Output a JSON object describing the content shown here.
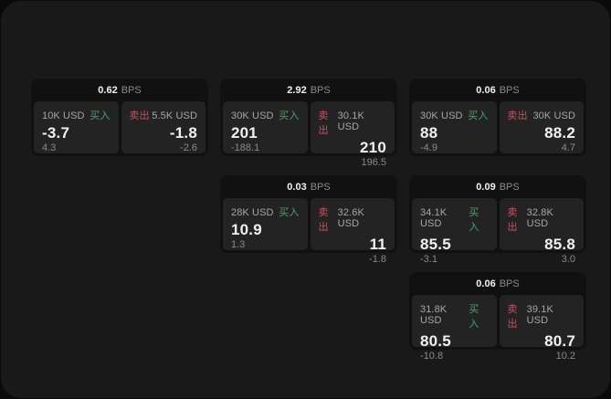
{
  "theme": {
    "page_bg": "#0a0a0a",
    "panel_bg": "#191919",
    "card_bg": "#111111",
    "cell_bg": "#232323",
    "text_primary": "#f1f1f1",
    "text_secondary": "#a6a6a6",
    "text_dim": "#8a8a8a",
    "buy_green": "#3fa968",
    "sell_red": "#c94f5e"
  },
  "labels": {
    "buy": "买入",
    "sell": "卖出",
    "bps_unit": "BPS"
  },
  "cards": [
    {
      "bps": "0.62",
      "buy": {
        "notional": "10K USD",
        "price": "-3.7",
        "delta": "4.3"
      },
      "sell": {
        "notional": "5.5K USD",
        "price": "-1.8",
        "delta": "-2.6"
      }
    },
    {
      "bps": "2.92",
      "buy": {
        "notional": "30K USD",
        "price": "201",
        "delta": "-188.1"
      },
      "sell": {
        "notional": "30.1K USD",
        "price": "210",
        "delta": "196.5"
      }
    },
    {
      "bps": "0.06",
      "buy": {
        "notional": "30K USD",
        "price": "88",
        "delta": "-4.9"
      },
      "sell": {
        "notional": "30K USD",
        "price": "88.2",
        "delta": "4.7"
      }
    },
    {
      "bps": "0.03",
      "buy": {
        "notional": "28K USD",
        "price": "10.9",
        "delta": "1.3"
      },
      "sell": {
        "notional": "32.6K USD",
        "price": "11",
        "delta": "-1.8"
      }
    },
    {
      "bps": "0.09",
      "buy": {
        "notional": "34.1K USD",
        "price": "85.5",
        "delta": "-3.1"
      },
      "sell": {
        "notional": "32.8K USD",
        "price": "85.8",
        "delta": "3.0"
      }
    },
    {
      "bps": "0.06",
      "buy": {
        "notional": "31.8K USD",
        "price": "80.5",
        "delta": "-10.8"
      },
      "sell": {
        "notional": "39.1K USD",
        "price": "80.7",
        "delta": "10.2"
      }
    }
  ]
}
